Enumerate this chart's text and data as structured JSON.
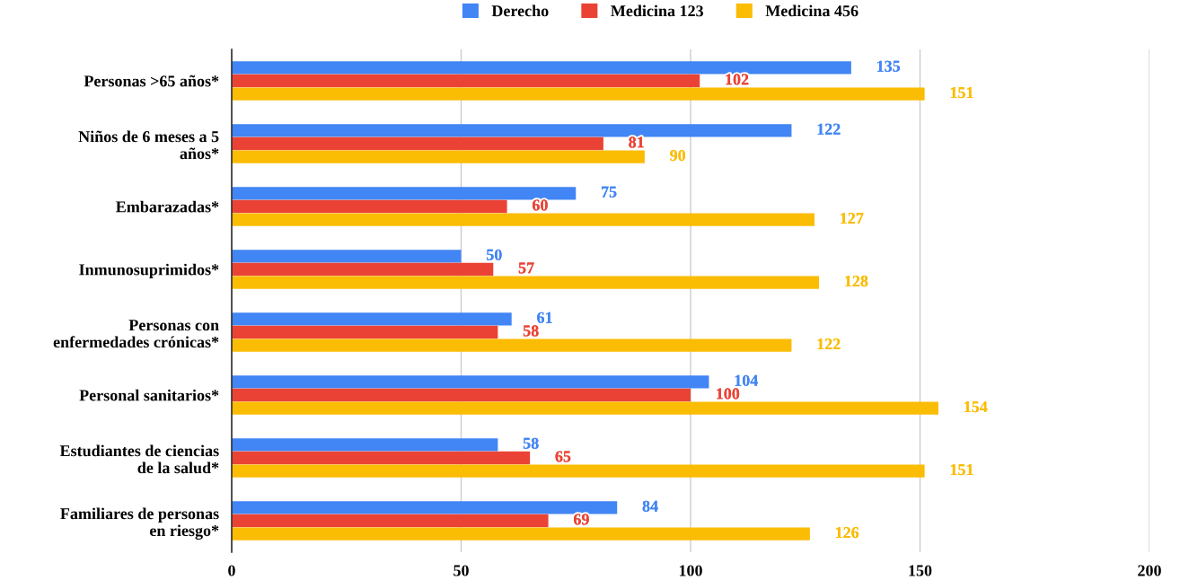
{
  "chart_data": {
    "type": "bar",
    "orientation": "horizontal",
    "categories": [
      "Personas >65 años*",
      "Niños de 6 meses a 5\naños*",
      "Embarazadas*",
      "Inmunosuprimidos*",
      "Personas con\nenfermedades crónicas*",
      "Personal sanitarios*",
      "Estudiantes de ciencias\nde la salud*",
      "Familiares de personas\nen riesgo*"
    ],
    "series": [
      {
        "name": "Derecho",
        "color": "#4285f4",
        "values": [
          135,
          122,
          75,
          50,
          61,
          104,
          58,
          84
        ]
      },
      {
        "name": "Medicina 123",
        "color": "#ea4335",
        "values": [
          102,
          81,
          60,
          57,
          58,
          100,
          65,
          69
        ]
      },
      {
        "name": "Medicina 456",
        "color": "#fbbc04",
        "values": [
          151,
          90,
          127,
          128,
          122,
          154,
          151,
          126
        ]
      }
    ],
    "xlim": [
      0,
      200
    ],
    "xticks": [
      0,
      50,
      100,
      150,
      200
    ],
    "grid": "x",
    "legend": "top",
    "data_labels": true
  }
}
